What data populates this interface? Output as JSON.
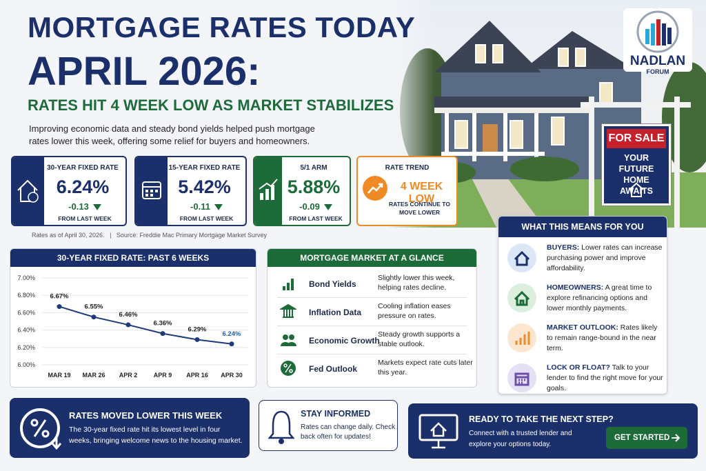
{
  "header": {
    "title_line1": "MORTGAGE RATES TODAY",
    "title_line2": "APRIL 2026:",
    "subtitle": "RATES HIT 4 WEEK LOW AS MARKET STABILIZES",
    "intro": "Improving economic data and steady bond yields helped push mortgage rates lower this week, offering some relief for buyers and homeowners."
  },
  "brand": {
    "name": "NADLAN",
    "sub": "FORUM"
  },
  "sign": {
    "top": "FOR SALE",
    "bottom": "YOUR FUTURE HOME AWAITS"
  },
  "rate_cards": [
    {
      "label": "30-YEAR FIXED RATE",
      "rate": "6.24%",
      "change": "-0.13",
      "note": "FROM LAST WEEK"
    },
    {
      "label": "15-YEAR FIXED RATE",
      "rate": "5.42%",
      "change": "-0.11",
      "note": "FROM LAST WEEK"
    },
    {
      "label": "5/1 ARM",
      "rate": "5.88%",
      "change": "-0.09",
      "note": "FROM LAST WEEK"
    }
  ],
  "trend": {
    "label": "RATE TREND",
    "value": "4 WEEK LOW",
    "note": "RATES CONTINUE TO MOVE LOWER"
  },
  "source": {
    "date": "Rates as of April 30, 2026.",
    "text": "Source: Freddie Mac Primary Mortgage Market Survey"
  },
  "chart_data": {
    "type": "line",
    "title": "30-YEAR FIXED RATE: PAST 6 WEEKS",
    "categories": [
      "MAR 19",
      "MAR 26",
      "APR 2",
      "APR 9",
      "APR 16",
      "APR 30"
    ],
    "values": [
      6.67,
      6.55,
      6.46,
      6.36,
      6.29,
      6.24
    ],
    "value_labels": [
      "6.67%",
      "6.55%",
      "6.46%",
      "6.36%",
      "6.29%",
      "6.24%"
    ],
    "color": "#1f3a7a",
    "ylim": [
      6.0,
      7.0
    ],
    "yticks": [
      {
        "value": 6.0,
        "label": "6.00%"
      },
      {
        "value": 6.2,
        "label": "6.20%"
      },
      {
        "value": 6.4,
        "label": "6.40%"
      },
      {
        "value": 6.6,
        "label": "6.60%"
      },
      {
        "value": 6.8,
        "label": "6.80%"
      },
      {
        "value": 7.0,
        "label": "7.00%"
      }
    ]
  },
  "glance": {
    "title": "MORTGAGE MARKET AT A GLANCE",
    "rows": [
      {
        "label": "Bond Yields",
        "text": "Slightly lower this week, helping rates decline."
      },
      {
        "label": "Inflation Data",
        "text": "Cooling inflation eases pressure on rates."
      },
      {
        "label": "Economic Growth",
        "text": "Steady growth supports a stable outlook."
      },
      {
        "label": "Fed Outlook",
        "text": "Markets expect rate cuts later this year."
      }
    ]
  },
  "meaning": {
    "title": "WHAT THIS MEANS FOR YOU",
    "items": [
      {
        "head": "BUYERS:",
        "text": "Lower rates can increase purchasing power and improve affordability."
      },
      {
        "head": "HOMEOWNERS:",
        "text": "A great time to explore refinancing options and lower monthly payments."
      },
      {
        "head": "MARKET OUTLOOK:",
        "text": "Rates likely to remain range-bound in the near term."
      },
      {
        "head": "LOCK OR FLOAT?",
        "text": "Talk to your lender to find the right move for your goals."
      }
    ]
  },
  "bottom": {
    "moved": {
      "title": "RATES MOVED LOWER THIS WEEK",
      "text": "The 30-year fixed rate hit its lowest level in four weeks, bringing welcome news to the housing market."
    },
    "informed": {
      "title": "STAY INFORMED",
      "text": "Rates can change daily. Check back often for updates!"
    },
    "cta": {
      "title": "READY TO TAKE THE NEXT STEP?",
      "text": "Connect with a trusted lender and explore your options today.",
      "button": "GET STARTED"
    }
  }
}
